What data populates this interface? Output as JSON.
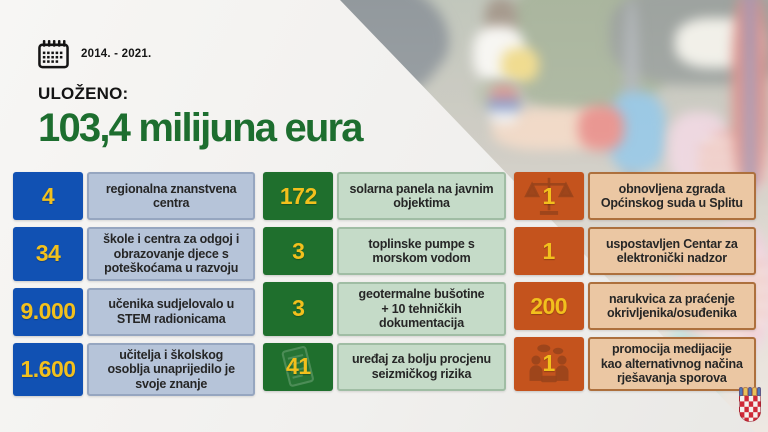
{
  "slide": {
    "period": "2014. - 2021.",
    "invested_label": "ULOŽENO:",
    "amount": "103,4 milijuna eura"
  },
  "stats_columns": [
    {
      "theme": "blue",
      "items": [
        {
          "value": "4",
          "label": "regionalna znanstvena\ncentra"
        },
        {
          "value": "34",
          "label": "škole i centra za odgoj i\nobrazovanje djece s\npoteškoćama u razvoju"
        },
        {
          "value": "9.000",
          "label": "učenika sudjelovalo u\nSTEM radionicama"
        },
        {
          "value": "1.600",
          "label": "učitelja i školskog\nosoblja unaprijedilo je\nsvoje znanje"
        }
      ]
    },
    {
      "theme": "green",
      "items": [
        {
          "value": "172",
          "label": "solarna panela na javnim\nobjektima"
        },
        {
          "value": "3",
          "label": "toplinske pumpe s\nmorskom vodom"
        },
        {
          "value": "3",
          "label": "geotermalne bušotine\n+ 10 tehničkih\ndokumentacija"
        },
        {
          "value": "41",
          "label": "uređaj za bolju procjenu\nseizmičkog rizika",
          "icon": "document-icon"
        }
      ]
    },
    {
      "theme": "orange",
      "items": [
        {
          "value": "1",
          "label": "obnovljena zgrada\nOpćinskog suda u Splitu",
          "icon": "scales-icon"
        },
        {
          "value": "1",
          "label": "uspostavljen Centar za\nelektronički nadzor"
        },
        {
          "value": "200",
          "label": "narukvica za praćenje\nokrivljenika/osuđenika"
        },
        {
          "value": "1",
          "label": "promocija medijacije\nkao alternativnog načina\nrješavanja sporova",
          "icon": "mediation-icon"
        }
      ]
    }
  ],
  "icons": {
    "calendar": "calendar-icon",
    "emblem": "croatia-coat-of-arms-icon"
  },
  "colors": {
    "headline_green": "#1d6e2f",
    "value_text_yellow": "#f2c01d",
    "label_text": "#262626",
    "blue_value_bg": "#1151b3",
    "blue_label_bg": "#b6c4d9",
    "green_value_bg": "#1f6f2d",
    "green_label_bg": "#c5dbc8",
    "orange_value_bg": "#c4531d",
    "orange_label_bg": "#ebc7a3"
  }
}
